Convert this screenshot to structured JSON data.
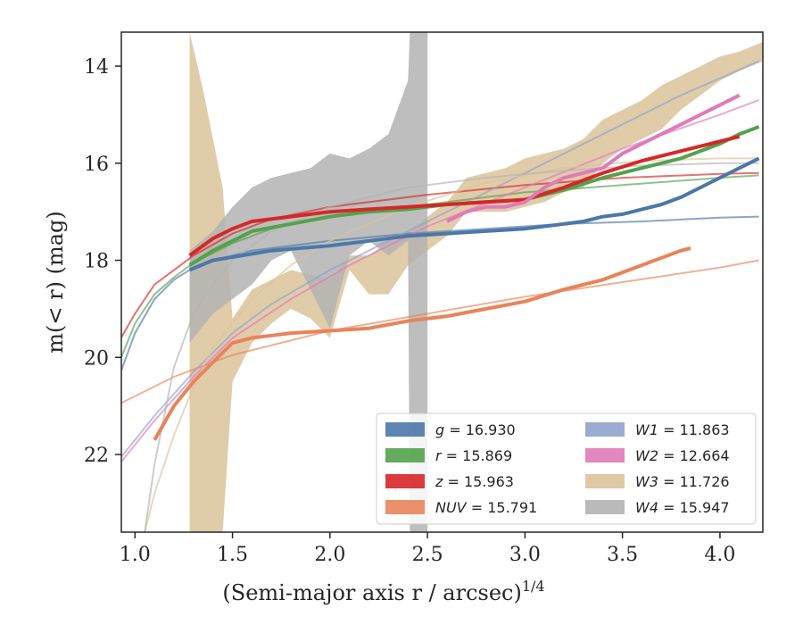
{
  "chart_data": {
    "type": "line",
    "xlabel": "(Semi-major axis r / arcsec)",
    "xlabel_exponent": "1/4",
    "ylabel": "m(< r) (mag)",
    "xlim": [
      0.93,
      4.22
    ],
    "ylim": [
      23.6,
      13.3
    ],
    "y_inverted": true,
    "grid": false,
    "x_ticks": [
      1.0,
      1.5,
      2.0,
      2.5,
      3.0,
      3.5,
      4.0
    ],
    "x_tick_labels": [
      "1.0",
      "1.5",
      "2.0",
      "2.5",
      "3.0",
      "3.5",
      "4.0"
    ],
    "y_ticks": [
      14,
      16,
      18,
      20,
      22
    ],
    "y_tick_labels": [
      "14",
      "16",
      "18",
      "20",
      "22"
    ],
    "legend_position": "lower-right",
    "series": [
      {
        "name": "g = 16.930",
        "legend_var": "g",
        "legend_val": "16.930",
        "color": "#4c78a8",
        "x": [
          1.28,
          1.4,
          1.55,
          1.7,
          1.85,
          2.0,
          2.2,
          2.4,
          2.6,
          2.8,
          3.0,
          3.1,
          3.2,
          3.3,
          3.4,
          3.5,
          3.6,
          3.7,
          3.8,
          3.9,
          4.0,
          4.1,
          4.2
        ],
        "y": [
          18.2,
          18.0,
          17.9,
          17.8,
          17.75,
          17.7,
          17.6,
          17.5,
          17.45,
          17.4,
          17.35,
          17.3,
          17.25,
          17.2,
          17.1,
          17.05,
          16.95,
          16.85,
          16.7,
          16.5,
          16.3,
          16.1,
          15.9
        ],
        "fit": {
          "x": [
            0.9,
            1.0,
            1.1,
            1.2,
            1.3,
            1.4,
            1.6,
            1.8,
            2.0,
            2.4,
            2.8,
            3.2,
            3.6,
            4.0,
            4.2
          ],
          "y": [
            20.6,
            19.5,
            18.8,
            18.4,
            18.15,
            18.0,
            17.8,
            17.7,
            17.6,
            17.45,
            17.35,
            17.25,
            17.2,
            17.12,
            17.1
          ]
        }
      },
      {
        "name": "r = 15.869",
        "legend_var": "r",
        "legend_val": "15.869",
        "color": "#54a24b",
        "x": [
          1.28,
          1.4,
          1.5,
          1.6,
          1.8,
          2.0,
          2.2,
          2.4,
          2.6,
          2.8,
          3.0,
          3.2,
          3.4,
          3.6,
          3.8,
          4.0,
          4.1,
          4.2
        ],
        "y": [
          18.1,
          17.8,
          17.6,
          17.4,
          17.25,
          17.1,
          17.0,
          16.95,
          16.85,
          16.8,
          16.75,
          16.55,
          16.3,
          16.1,
          15.9,
          15.6,
          15.4,
          15.25
        ],
        "fit": {
          "x": [
            0.9,
            1.0,
            1.1,
            1.2,
            1.3,
            1.5,
            1.7,
            2.0,
            2.5,
            3.0,
            3.5,
            4.0,
            4.2
          ],
          "y": [
            20.3,
            19.3,
            18.7,
            18.35,
            18.05,
            17.65,
            17.35,
            17.1,
            16.85,
            16.6,
            16.45,
            16.3,
            16.25
          ]
        }
      },
      {
        "name": "z = 15.963",
        "legend_var": "z",
        "legend_val": "15.963",
        "color": "#d62728",
        "x": [
          1.28,
          1.4,
          1.5,
          1.6,
          1.8,
          2.0,
          2.2,
          2.4,
          2.6,
          2.8,
          3.0,
          3.2,
          3.4,
          3.6,
          3.8,
          4.0,
          4.1
        ],
        "y": [
          17.9,
          17.55,
          17.35,
          17.2,
          17.1,
          17.0,
          16.95,
          16.9,
          16.85,
          16.8,
          16.75,
          16.5,
          16.2,
          15.95,
          15.75,
          15.55,
          15.45
        ],
        "fit": {
          "x": [
            0.9,
            1.0,
            1.1,
            1.2,
            1.3,
            1.5,
            1.7,
            2.0,
            2.5,
            3.0,
            3.5,
            4.0,
            4.2
          ],
          "y": [
            19.8,
            19.1,
            18.5,
            18.2,
            17.9,
            17.45,
            17.15,
            16.9,
            16.65,
            16.45,
            16.3,
            16.22,
            16.2
          ]
        }
      },
      {
        "name": "NUV = 15.791",
        "legend_var": "NUV",
        "legend_val": "15.791",
        "color": "#e8845a",
        "x": [
          1.1,
          1.2,
          1.3,
          1.4,
          1.5,
          1.6,
          1.7,
          1.8,
          2.0,
          2.2,
          2.4,
          2.6,
          2.8,
          3.0,
          3.2,
          3.4,
          3.6,
          3.8,
          3.85
        ],
        "y": [
          21.7,
          21.0,
          20.5,
          20.1,
          19.7,
          19.6,
          19.55,
          19.5,
          19.45,
          19.4,
          19.25,
          19.15,
          19.0,
          18.85,
          18.6,
          18.4,
          18.1,
          17.8,
          17.75
        ],
        "fit": {
          "x": [
            0.9,
            1.2,
            1.5,
            2.0,
            2.5,
            3.0,
            3.5,
            4.0,
            4.2
          ],
          "y": [
            21.0,
            20.4,
            19.95,
            19.45,
            19.1,
            18.75,
            18.45,
            18.15,
            18.0
          ]
        }
      },
      {
        "name": "W1 = 11.863",
        "legend_var": "W1",
        "legend_val": "11.863",
        "color": "#8fa3cc",
        "x": [],
        "y": [],
        "fit": {
          "x": [
            0.9,
            1.1,
            1.3,
            1.5,
            1.7,
            2.0,
            2.3,
            2.6,
            3.0,
            3.4,
            3.8,
            4.2
          ],
          "y": [
            22.2,
            21.2,
            20.3,
            19.5,
            18.9,
            18.2,
            17.6,
            17.0,
            16.2,
            15.4,
            14.6,
            13.9
          ]
        }
      },
      {
        "name": "W2 = 12.664",
        "legend_var": "W2",
        "legend_val": "12.664",
        "color": "#e07ab8",
        "x": [
          2.6,
          2.7,
          2.8,
          2.9,
          3.0,
          3.1,
          3.2,
          3.3,
          3.4,
          3.5,
          3.6,
          3.7,
          3.8,
          3.9,
          4.0,
          4.1
        ],
        "y": [
          17.2,
          17.0,
          16.9,
          16.9,
          16.8,
          16.5,
          16.3,
          16.2,
          16.1,
          15.8,
          15.6,
          15.4,
          15.2,
          15.0,
          14.8,
          14.6
        ],
        "fit": {
          "x": [
            0.9,
            1.1,
            1.3,
            1.5,
            1.8,
            2.1,
            2.5,
            3.0,
            3.5,
            4.0,
            4.2
          ],
          "y": [
            22.3,
            21.3,
            20.4,
            19.6,
            18.8,
            18.1,
            17.3,
            16.5,
            15.7,
            15.0,
            14.7
          ]
        }
      },
      {
        "name": "W3 = 11.726",
        "legend_var": "W3",
        "legend_val": "11.726",
        "color": "#dcc39b",
        "band_x": [
          1.28,
          1.35,
          1.45,
          1.5,
          1.6,
          1.7,
          1.8,
          1.9,
          2.0,
          2.1,
          2.2,
          2.3,
          2.4,
          2.5,
          2.6,
          2.7,
          2.8,
          2.9,
          3.0,
          3.1,
          3.2,
          3.3,
          3.4,
          3.5,
          3.6,
          3.7,
          3.8,
          3.9,
          4.0,
          4.1,
          4.22
        ],
        "band_low": [
          23.6,
          23.6,
          23.6,
          20.5,
          19.7,
          19.3,
          19.0,
          19.2,
          19.6,
          18.2,
          18.7,
          18.7,
          18.1,
          17.8,
          17.5,
          17.0,
          17.0,
          17.0,
          16.9,
          16.8,
          16.6,
          16.5,
          16.0,
          15.7,
          15.5,
          15.3,
          14.9,
          14.6,
          14.3,
          14.1,
          13.9
        ],
        "band_high": [
          13.3,
          14.5,
          16.5,
          19.2,
          18.6,
          18.4,
          18.2,
          18.3,
          18.4,
          17.9,
          17.9,
          17.6,
          17.4,
          17.1,
          16.8,
          16.3,
          16.2,
          16.1,
          15.9,
          15.8,
          15.7,
          15.5,
          15.1,
          14.9,
          14.7,
          14.4,
          14.2,
          14.0,
          13.8,
          13.7,
          13.5
        ],
        "fit": {
          "x": [
            1.05,
            1.1,
            1.2,
            1.3,
            1.4,
            1.6,
            1.8,
            2.0,
            2.4,
            2.8,
            3.2,
            3.6,
            4.0,
            4.2
          ],
          "y": [
            23.6,
            22.8,
            21.6,
            20.6,
            19.8,
            18.8,
            18.1,
            17.6,
            16.9,
            16.4,
            16.1,
            15.95,
            15.9,
            15.9
          ]
        }
      },
      {
        "name": "W4 = 15.947",
        "legend_var": "W4",
        "legend_val": "15.947",
        "color": "#b3b3b3",
        "band_x": [
          1.28,
          1.4,
          1.5,
          1.6,
          1.7,
          1.8,
          1.9,
          2.0,
          2.1,
          2.2,
          2.3,
          2.4,
          2.41,
          2.5
        ],
        "band_low": [
          19.7,
          19.1,
          18.8,
          18.5,
          18.0,
          17.8,
          18.6,
          19.4,
          17.9,
          17.6,
          17.9,
          17.6,
          23.6,
          23.6
        ],
        "band_high": [
          17.8,
          17.4,
          16.9,
          16.5,
          16.3,
          16.2,
          16.1,
          15.8,
          15.9,
          15.7,
          15.4,
          14.3,
          13.3,
          13.3
        ],
        "fit": {
          "x": [
            1.05,
            1.1,
            1.2,
            1.3,
            1.4,
            1.5,
            1.7,
            2.0,
            2.4,
            2.8,
            3.2,
            3.6,
            4.0,
            4.2
          ],
          "y": [
            23.6,
            22.2,
            20.2,
            19.1,
            18.5,
            18.0,
            17.4,
            16.9,
            16.5,
            16.3,
            16.15,
            16.05,
            16.0,
            16.0
          ]
        }
      }
    ]
  }
}
